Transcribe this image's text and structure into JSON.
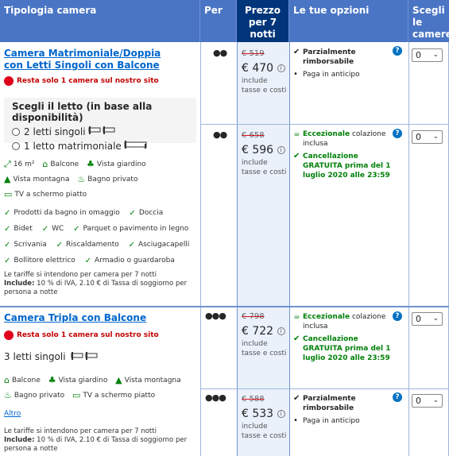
{
  "header": {
    "room_type": "Tipologia camera",
    "persons": "Per",
    "price": "Prezzo per 7 notti",
    "options": "Le tue opzioni",
    "choose": "Scegli le camere"
  },
  "rooms": [
    {
      "name": "Camera Matrimoniale/Doppia con Letti Singoli con Balcone",
      "alert": "Resta solo 1 camera sul nostro sito",
      "bed_title": "Scegli il letto (in base alla disponibilità)",
      "bed_options": [
        "2 letti singoli",
        "1 letto matrimoniale"
      ],
      "facilities": [
        "16 m²",
        "Balcone",
        "Vista giardino",
        "Vista montagna",
        "Bagno privato",
        "TV a schermo piatto"
      ],
      "amenities": [
        "Prodotti da bagno in omaggio",
        "Doccia",
        "Bidet",
        "WC",
        "Parquet o pavimento in legno",
        "Scrivania",
        "Riscaldamento",
        "Asciugacapelli",
        "Bollitore elettrico",
        "Armadio o guardaroba"
      ],
      "note_line1": "Le tariffe si intendono per camera per 7 notti",
      "note_include_label": "Include:",
      "note_include": "10 % di IVA, 2.10 € di Tassa di soggiorno per persona a notte",
      "offers": [
        {
          "persons": 2,
          "old_price": "€ 519",
          "price": "€ 470",
          "incl": "include tasse e costi",
          "options": [
            {
              "mark": "✔",
              "text": "Parzialmente rimborsabile",
              "style": "bold"
            },
            {
              "mark": "•",
              "text": "Paga in anticipo",
              "style": "normal"
            }
          ],
          "qty": "0"
        },
        {
          "persons": 2,
          "old_price": "€ 658",
          "price": "€ 596",
          "incl": "include tasse e costi",
          "options": [
            {
              "mark": "☕",
              "text_bold": "Eccezionale",
              "text": " colazione inclusa",
              "style": "green-lead"
            },
            {
              "mark": "✔",
              "text": "Cancellazione GRATUITA prima del 1 luglio 2020 alle 23:59",
              "style": "green"
            }
          ],
          "qty": "0"
        }
      ]
    },
    {
      "name": "Camera Tripla con Balcone",
      "alert": "Resta solo 1 camera sul nostro sito",
      "bed_plain": "3 letti singoli",
      "facilities": [
        "Balcone",
        "Vista giardino",
        "Vista montagna",
        "Bagno privato",
        "TV a schermo piatto"
      ],
      "more_link": "Altro",
      "note_line1": "Le tariffe si intendono per camera per 7 notti",
      "note_include_label": "Include:",
      "note_include": "10 % di IVA, 2.10 € di Tassa di soggiorno per persona a notte",
      "offers": [
        {
          "persons": 3,
          "old_price": "€ 798",
          "price": "€ 722",
          "incl": "include tasse e costi",
          "options": [
            {
              "mark": "☕",
              "text_bold": "Eccezionale",
              "text": " colazione inclusa",
              "style": "green-lead"
            },
            {
              "mark": "✔",
              "text": "Cancellazione GRATUITA prima del 1 luglio 2020 alle 23:59",
              "style": "green"
            }
          ],
          "qty": "0"
        },
        {
          "persons": 3,
          "old_price": "€ 588",
          "price": "€ 533",
          "incl": "include tasse e costi",
          "options": [
            {
              "mark": "✔",
              "text": "Parzialmente rimborsabile",
              "style": "bold"
            },
            {
              "mark": "•",
              "text": "Paga in anticipo",
              "style": "normal"
            }
          ],
          "qty": "0"
        }
      ]
    }
  ],
  "info_glyph": "i",
  "help_glyph": "?",
  "colors": {
    "header": "#4a75c4",
    "price_header": "#00357a",
    "link": "#0066cc",
    "alert": "#e0001b",
    "green": "#008009"
  }
}
